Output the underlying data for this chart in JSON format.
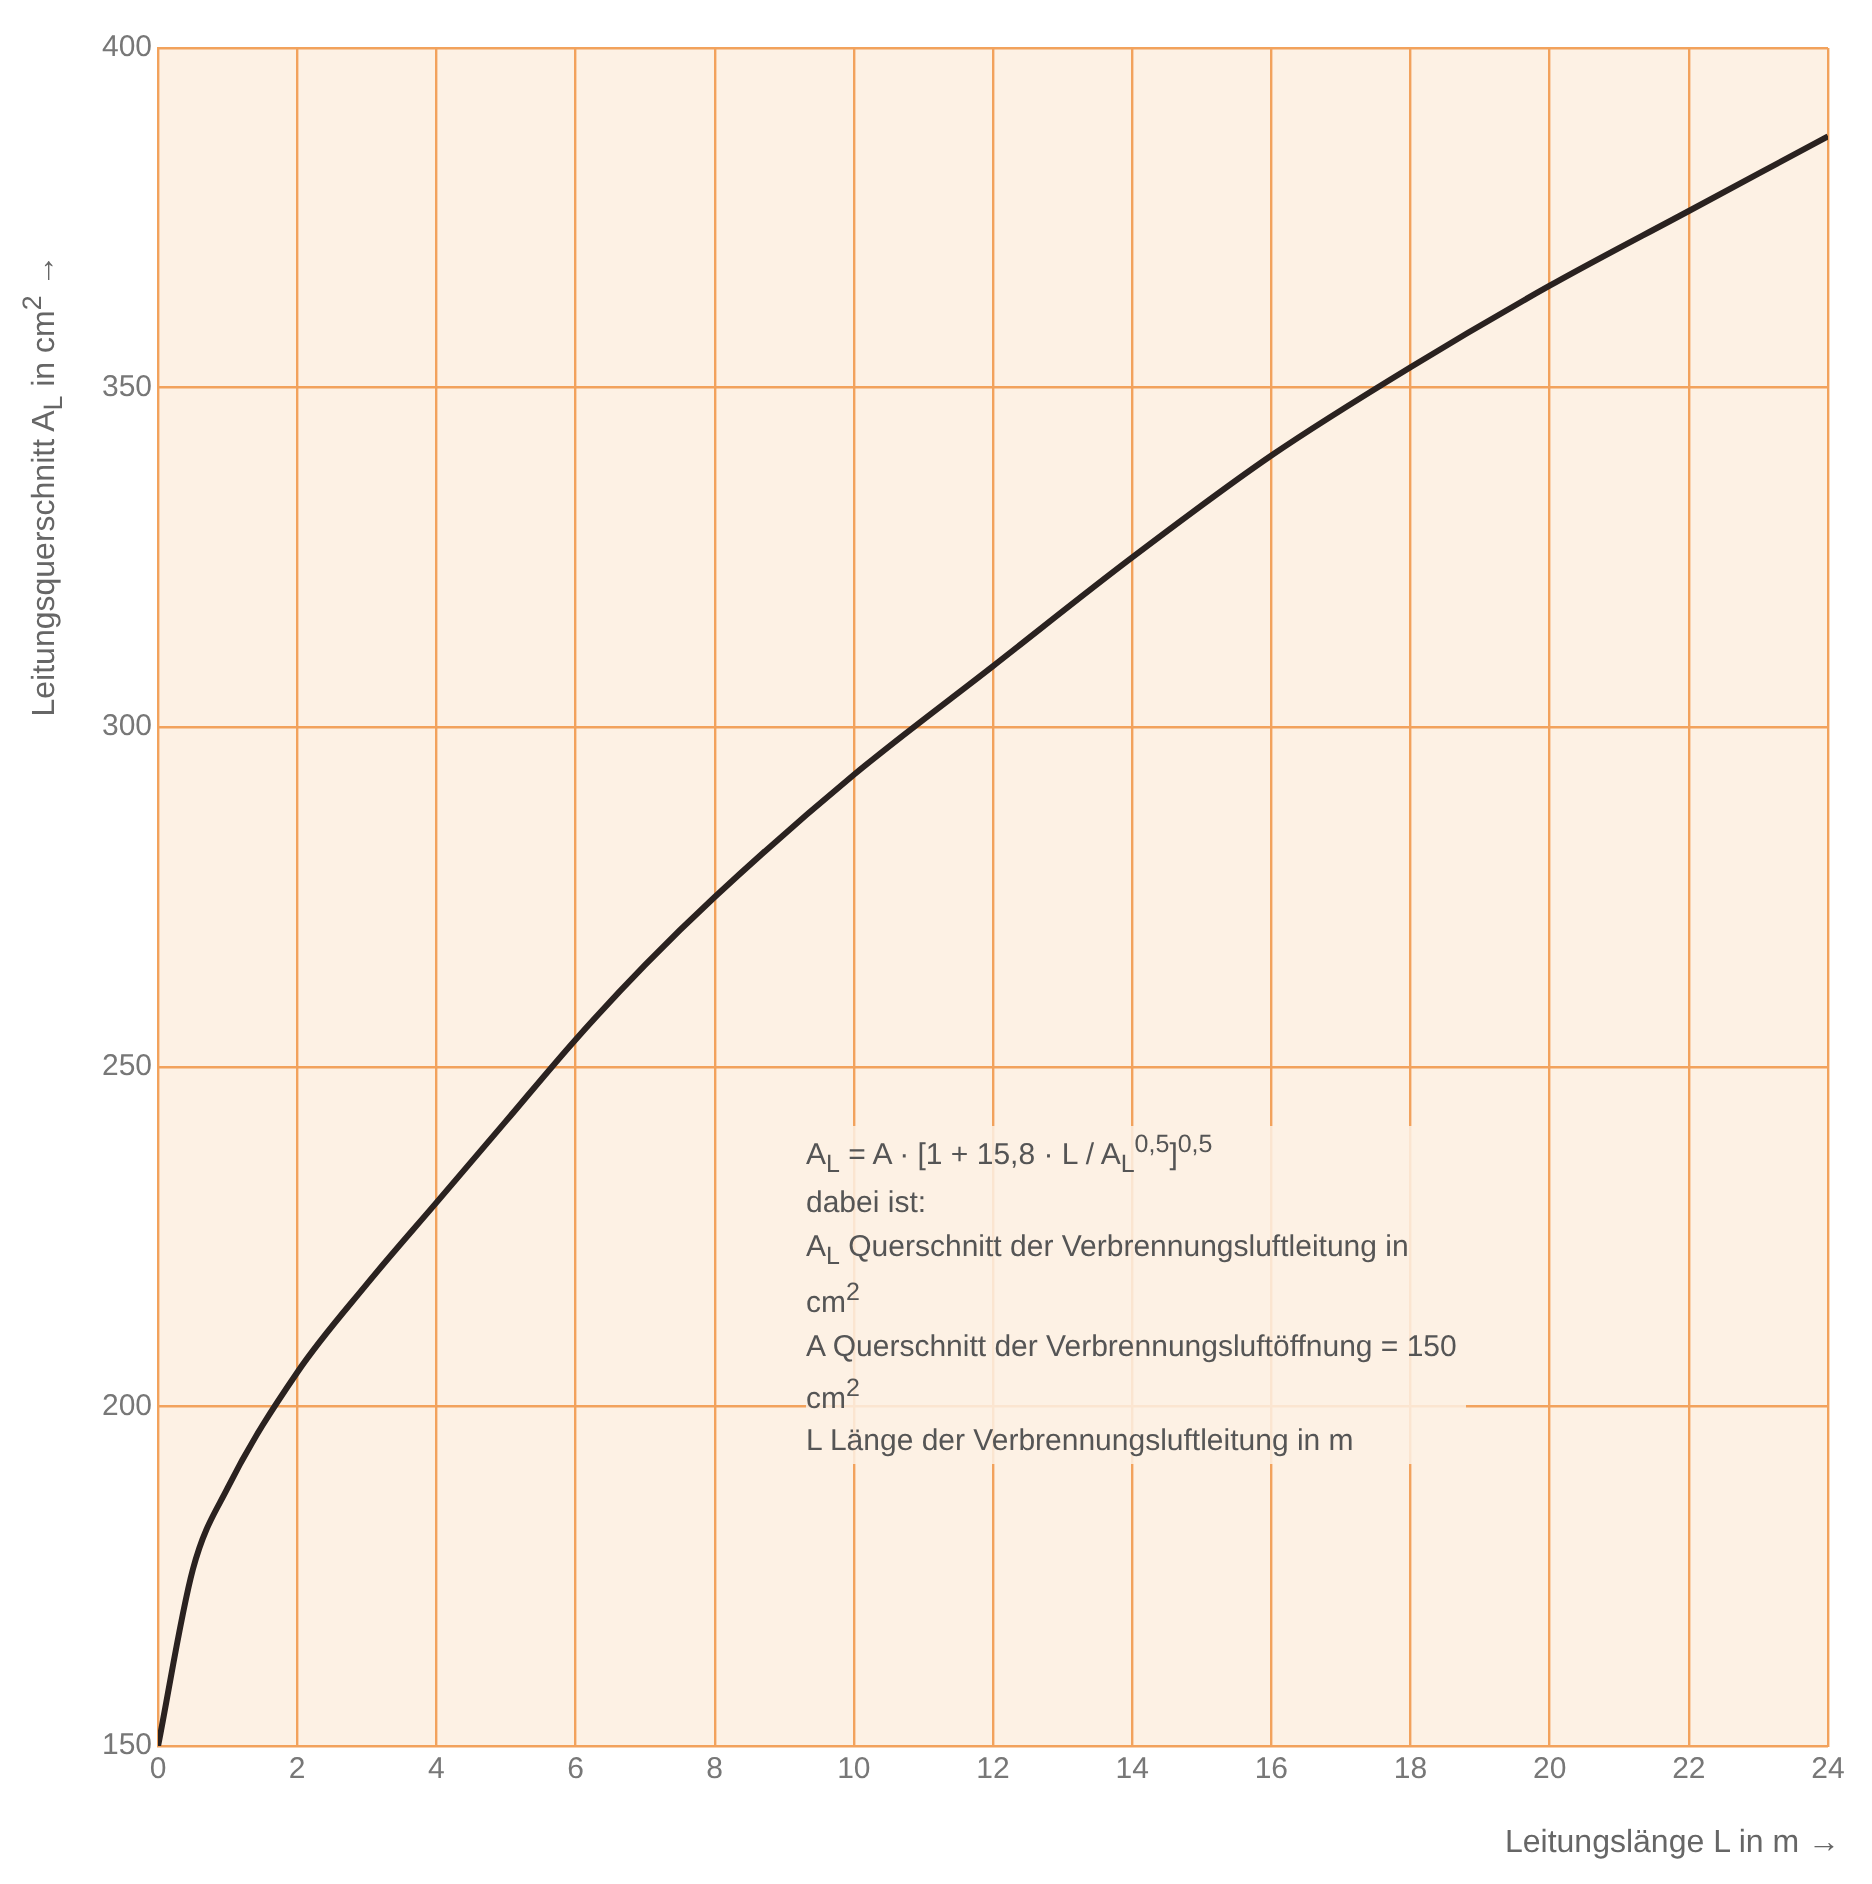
{
  "chart_data": {
    "type": "line",
    "xlabel": "Leitungslänge L in m →",
    "ylabel": "Leitungsquerschnitt A$_{L}$ in cm$^{2}$ →",
    "x": [
      0,
      0.5,
      1,
      2,
      3,
      4,
      5,
      6,
      7,
      8,
      10,
      12,
      14,
      16,
      18,
      20,
      22,
      24
    ],
    "series": [
      {
        "color": "#2a2220",
        "values": [
          150,
          176,
          188,
          205,
          218,
          230,
          242,
          254,
          265,
          275,
          293,
          309,
          325,
          340,
          353,
          365,
          376,
          387
        ]
      }
    ],
    "xlim": [
      0,
      24
    ],
    "xticks": [
      0,
      2,
      4,
      6,
      8,
      10,
      12,
      14,
      16,
      18,
      20,
      22,
      24
    ],
    "ylim": [
      150,
      400
    ],
    "yticks": [
      150,
      200,
      250,
      300,
      350,
      400
    ],
    "grid": true,
    "marker": "none",
    "line_style": "solid",
    "annotations": [
      "A$_{L}$ = A · [1 + 15,8 · L / A$_{L}$$^{0,5}$]$^{0,5}$",
      "dabei ist:",
      "A$_{L}$  Querschnitt der Verbrennungsluftleitung in cm$^{2}$",
      "A  Querschnitt der Verbrennungsluftöffnung = 150 cm$^{2}$",
      "L  Länge der Verbrennungsluftleitung in m"
    ]
  }
}
